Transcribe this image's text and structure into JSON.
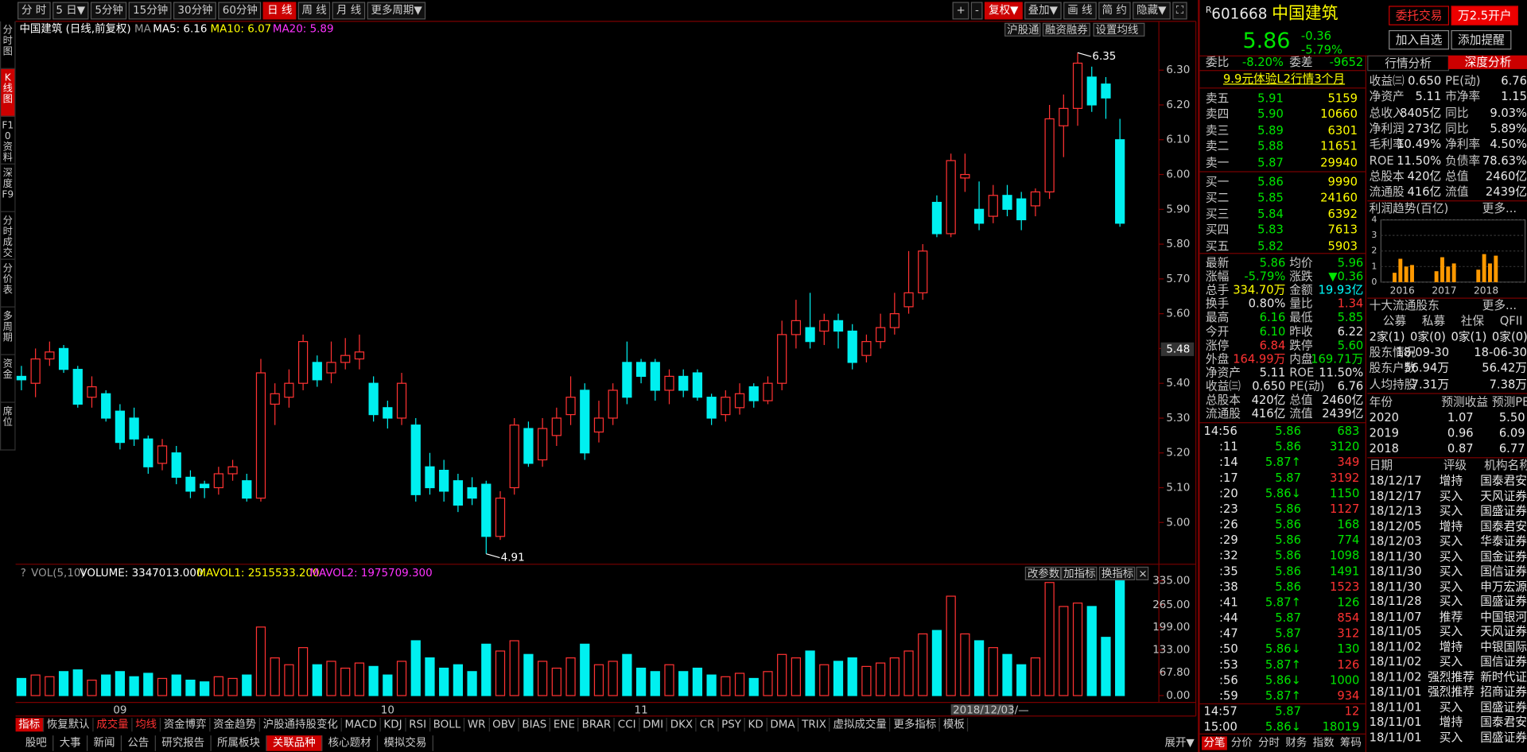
{
  "toolbar": {
    "periods": [
      "分 时",
      "5 日▼",
      "5分钟",
      "15分钟",
      "30分钟",
      "60分钟",
      "日 线",
      "周 线",
      "月 线",
      "更多周期▼"
    ],
    "active_period": 6,
    "tools": [
      "+",
      "-",
      "复权▼",
      "叠加▼",
      "画 线",
      "简 约",
      "隐藏▼",
      "⛶"
    ],
    "active_tool": 2
  },
  "side_tabs": {
    "items": [
      "分时图",
      "K线图",
      "F10资料",
      "深度F9",
      "分时成交",
      "分价表",
      "多周期",
      "资金",
      "席位"
    ],
    "active": 1
  },
  "kline": {
    "title": "中国建筑 (日线,前复权)",
    "ma": "MA",
    "ma5": "MA5: 6.16",
    "ma10": "MA10: 6.07",
    "ma20": "MA20: 5.89",
    "buttons": [
      "沪股通",
      "融资融券",
      "设置均线"
    ],
    "ylim": [
      4.88,
      6.44
    ],
    "yticks": [
      {
        "value": 5.0,
        "label": "5.00"
      },
      {
        "value": 5.1,
        "label": "5.10"
      },
      {
        "value": 5.2,
        "label": "5.20"
      },
      {
        "value": 5.3,
        "label": "5.30"
      },
      {
        "value": 5.4,
        "label": "5.40"
      },
      {
        "value": 5.5,
        "label": "5.50"
      },
      {
        "value": 5.6,
        "label": "5.60"
      },
      {
        "value": 5.7,
        "label": "5.70"
      },
      {
        "value": 5.8,
        "label": "5.80"
      },
      {
        "value": 5.9,
        "label": "5.90"
      },
      {
        "value": 6.0,
        "label": "6.00"
      },
      {
        "value": 6.1,
        "label": "6.10"
      },
      {
        "value": 6.2,
        "label": "6.20"
      },
      {
        "value": 6.3,
        "label": "6.30"
      }
    ],
    "cursor_price": "5.48",
    "high": 6.35,
    "low": 4.91,
    "up_color": "#ff3232",
    "down_color": "#00f0f0",
    "dates": [
      null,
      null,
      null,
      null,
      null,
      null,
      null,
      "09",
      null,
      null,
      null,
      null,
      null,
      null,
      null,
      null,
      null,
      null,
      null,
      null,
      null,
      null,
      null,
      null,
      null,
      null,
      "10",
      null,
      null,
      null,
      null,
      null,
      null,
      null,
      null,
      null,
      null,
      null,
      null,
      null,
      null,
      null,
      null,
      null,
      "11",
      null,
      null,
      null,
      null,
      null,
      null,
      null,
      null,
      null,
      null,
      null,
      null,
      null,
      null,
      null,
      null,
      null,
      null,
      null,
      null,
      null,
      "2018/12/03/—",
      null,
      null,
      null,
      null,
      null,
      null,
      null,
      null,
      null,
      null,
      null,
      null
    ],
    "candles": [
      [
        5.42,
        5.45,
        5.38,
        5.41
      ],
      [
        5.4,
        5.5,
        5.36,
        5.47
      ],
      [
        5.47,
        5.52,
        5.45,
        5.49
      ],
      [
        5.5,
        5.51,
        5.43,
        5.44
      ],
      [
        5.44,
        5.45,
        5.33,
        5.34
      ],
      [
        5.36,
        5.42,
        5.33,
        5.39
      ],
      [
        5.37,
        5.38,
        5.29,
        5.3
      ],
      [
        5.32,
        5.34,
        5.21,
        5.23
      ],
      [
        5.3,
        5.33,
        5.22,
        5.24
      ],
      [
        5.24,
        5.25,
        5.14,
        5.16
      ],
      [
        5.17,
        5.24,
        5.15,
        5.22
      ],
      [
        5.2,
        5.22,
        5.11,
        5.13
      ],
      [
        5.13,
        5.15,
        5.07,
        5.09
      ],
      [
        5.11,
        5.12,
        5.07,
        5.1
      ],
      [
        5.1,
        5.16,
        5.08,
        5.14
      ],
      [
        5.14,
        5.18,
        5.12,
        5.16
      ],
      [
        5.12,
        5.14,
        5.06,
        5.07
      ],
      [
        5.07,
        5.47,
        5.06,
        5.43
      ],
      [
        5.34,
        5.4,
        5.28,
        5.37
      ],
      [
        5.36,
        5.44,
        5.33,
        5.4
      ],
      [
        5.4,
        5.54,
        5.38,
        5.52
      ],
      [
        5.46,
        5.48,
        5.39,
        5.41
      ],
      [
        5.43,
        5.52,
        5.4,
        5.46
      ],
      [
        5.46,
        5.53,
        5.44,
        5.48
      ],
      [
        5.47,
        5.54,
        5.44,
        5.49
      ],
      [
        5.4,
        5.42,
        5.29,
        5.31
      ],
      [
        5.33,
        5.35,
        5.27,
        5.3
      ],
      [
        5.3,
        5.43,
        5.28,
        5.4
      ],
      [
        5.28,
        5.3,
        5.06,
        5.08
      ],
      [
        5.16,
        5.2,
        5.08,
        5.1
      ],
      [
        5.15,
        5.18,
        5.06,
        5.09
      ],
      [
        5.12,
        5.14,
        5.03,
        5.05
      ],
      [
        5.1,
        5.13,
        5.05,
        5.07
      ],
      [
        5.11,
        5.12,
        4.91,
        4.96
      ],
      [
        4.96,
        5.09,
        4.95,
        5.07
      ],
      [
        5.1,
        5.3,
        5.08,
        5.28
      ],
      [
        5.27,
        5.29,
        5.16,
        5.17
      ],
      [
        5.18,
        5.3,
        5.16,
        5.27
      ],
      [
        5.25,
        5.33,
        5.22,
        5.3
      ],
      [
        5.31,
        5.42,
        5.28,
        5.36
      ],
      [
        5.38,
        5.4,
        5.18,
        5.2
      ],
      [
        5.26,
        5.35,
        5.23,
        5.3
      ],
      [
        5.3,
        5.4,
        5.28,
        5.38
      ],
      [
        5.46,
        5.52,
        5.34,
        5.36
      ],
      [
        5.46,
        5.47,
        5.4,
        5.42
      ],
      [
        5.46,
        5.47,
        5.35,
        5.38
      ],
      [
        5.38,
        5.44,
        5.34,
        5.42
      ],
      [
        5.42,
        5.44,
        5.36,
        5.38
      ],
      [
        5.43,
        5.44,
        5.35,
        5.36
      ],
      [
        5.36,
        5.37,
        5.28,
        5.3
      ],
      [
        5.31,
        5.38,
        5.29,
        5.36
      ],
      [
        5.33,
        5.4,
        5.31,
        5.37
      ],
      [
        5.39,
        5.4,
        5.33,
        5.35
      ],
      [
        5.35,
        5.42,
        5.34,
        5.4
      ],
      [
        5.4,
        5.58,
        5.38,
        5.54
      ],
      [
        5.54,
        5.64,
        5.5,
        5.58
      ],
      [
        5.56,
        5.66,
        5.5,
        5.52
      ],
      [
        5.55,
        5.6,
        5.51,
        5.58
      ],
      [
        5.58,
        5.6,
        5.5,
        5.55
      ],
      [
        5.55,
        5.57,
        5.44,
        5.46
      ],
      [
        5.48,
        5.54,
        5.46,
        5.52
      ],
      [
        5.52,
        5.6,
        5.5,
        5.56
      ],
      [
        5.56,
        5.66,
        5.54,
        5.6
      ],
      [
        5.62,
        5.78,
        5.6,
        5.66
      ],
      [
        5.66,
        5.8,
        5.64,
        5.78
      ],
      [
        5.92,
        5.94,
        5.82,
        5.83
      ],
      [
        5.83,
        6.06,
        5.82,
        6.04
      ],
      [
        5.99,
        6.06,
        5.95,
        6.0
      ],
      [
        5.9,
        5.98,
        5.84,
        5.86
      ],
      [
        5.88,
        5.97,
        5.86,
        5.94
      ],
      [
        5.94,
        5.97,
        5.88,
        5.9
      ],
      [
        5.93,
        5.95,
        5.84,
        5.87
      ],
      [
        5.91,
        5.96,
        5.88,
        5.95
      ],
      [
        5.95,
        6.2,
        5.93,
        6.16
      ],
      [
        6.14,
        6.23,
        6.05,
        6.19
      ],
      [
        6.19,
        6.35,
        6.14,
        6.32
      ],
      [
        6.28,
        6.31,
        6.18,
        6.2
      ],
      [
        6.26,
        6.28,
        6.16,
        6.22
      ],
      [
        6.1,
        6.16,
        5.85,
        5.86
      ]
    ]
  },
  "volume": {
    "help": "?",
    "header": "VOL(5,10)",
    "volume": "VOLUME: 3347013.000",
    "mavol1": "MAVOL1: 2515533.200",
    "mavol2": "MAVOL2: 1975709.300",
    "buttons": [
      "改参数",
      "加指标",
      "换指标",
      "×"
    ],
    "ylim": [
      0,
      335
    ],
    "yticks": [
      {
        "value": 0,
        "label": "0.00"
      },
      {
        "value": 67.8,
        "label": "67.80"
      },
      {
        "value": 133,
        "label": "133.00"
      },
      {
        "value": 199,
        "label": "199.00"
      },
      {
        "value": 265,
        "label": "265.00"
      },
      {
        "value": 335,
        "label": "335.00"
      }
    ],
    "values": [
      50,
      60,
      55,
      70,
      75,
      45,
      60,
      70,
      55,
      65,
      50,
      60,
      45,
      40,
      55,
      50,
      60,
      200,
      110,
      90,
      140,
      90,
      100,
      80,
      95,
      85,
      60,
      100,
      160,
      110,
      80,
      90,
      70,
      150,
      130,
      160,
      120,
      100,
      80,
      110,
      150,
      90,
      100,
      120,
      80,
      70,
      90,
      70,
      80,
      60,
      55,
      65,
      50,
      70,
      120,
      110,
      130,
      90,
      100,
      110,
      85,
      95,
      110,
      130,
      180,
      190,
      290,
      180,
      160,
      140,
      120,
      90,
      110,
      330,
      260,
      270,
      260,
      170,
      334.7
    ]
  },
  "indicator_tabs": {
    "items": [
      "指标",
      "恢复默认",
      "成交量",
      "均线",
      "资金博弈",
      "资金趋势",
      "沪股通持股变化",
      "MACD",
      "KDJ",
      "RSI",
      "BOLL",
      "WR",
      "OBV",
      "BIAS",
      "ENE",
      "BRAR",
      "CCI",
      "DMI",
      "DKX",
      "CR",
      "PSY",
      "KD",
      "DMA",
      "TRIX",
      "虚拟成交量",
      "更多指标",
      "模板"
    ],
    "active": 0,
    "highlight": [
      2,
      3
    ]
  },
  "bottom_tabs": {
    "items": [
      "股吧",
      "大事",
      "新闻",
      "公告",
      "研究报告",
      "所属板块",
      "关联品种",
      "核心题材",
      "模拟交易"
    ],
    "active": 6,
    "expand": "展开▼"
  },
  "quote": {
    "flag": "R",
    "code": "601668",
    "name": "中国建筑",
    "price": "5.86",
    "change": "-0.36",
    "pct": "-5.79%",
    "buttons": [
      "委托交易",
      "万2.5开户",
      "加入自选",
      "添加提醒"
    ],
    "wei_bi_label": "委比",
    "wei_bi": "-8.20%",
    "wei_cha_label": "委差",
    "wei_cha": "-9652",
    "promo": "9.9元体验L2行情3个月",
    "sell": [
      [
        "卖五",
        "5.91",
        "5159"
      ],
      [
        "卖四",
        "5.90",
        "10660"
      ],
      [
        "卖三",
        "5.89",
        "6301"
      ],
      [
        "卖二",
        "5.88",
        "11651"
      ],
      [
        "卖一",
        "5.87",
        "29940"
      ]
    ],
    "buy": [
      [
        "买一",
        "5.86",
        "9990"
      ],
      [
        "买二",
        "5.85",
        "24160"
      ],
      [
        "买三",
        "5.84",
        "6392"
      ],
      [
        "买四",
        "5.83",
        "7613"
      ],
      [
        "买五",
        "5.82",
        "5903"
      ]
    ],
    "stats": [
      [
        "最新",
        "5.86",
        "均价",
        "5.96"
      ],
      [
        "涨幅",
        "-5.79%",
        "涨跌",
        "▼0.36"
      ],
      [
        "总手",
        "334.70万",
        "金额",
        "19.93亿"
      ],
      [
        "换手",
        "0.80%",
        "量比",
        "1.34"
      ],
      [
        "最高",
        "6.16",
        "最低",
        "5.85"
      ],
      [
        "今开",
        "6.10",
        "昨收",
        "6.22"
      ],
      [
        "涨停",
        "6.84",
        "跌停",
        "5.60"
      ],
      [
        "外盘",
        "164.99万",
        "内盘",
        "169.71万"
      ],
      [
        "净资产",
        "5.11",
        "ROE",
        "11.50%"
      ],
      [
        "收益㈢",
        "0.650",
        "PE(动)",
        "6.76"
      ],
      [
        "总股本",
        "420亿",
        "总值",
        "2460亿"
      ],
      [
        "流通股",
        "416亿",
        "流值",
        "2439亿"
      ]
    ],
    "ticks": [
      {
        "time": "14:56",
        "price": "5.86",
        "volume": "683",
        "color": "#00e600"
      },
      {
        "time": ":11",
        "price": "5.86",
        "volume": "3120",
        "color": "#00e600"
      },
      {
        "time": ":14",
        "price": "5.87↑",
        "volume": "349",
        "color": "#ff3232"
      },
      {
        "time": ":17",
        "price": "5.87",
        "volume": "3192",
        "color": "#ff3232"
      },
      {
        "time": ":20",
        "price": "5.86↓",
        "volume": "1150",
        "color": "#00e600"
      },
      {
        "time": ":23",
        "price": "5.86",
        "volume": "1127",
        "color": "#ff3232"
      },
      {
        "time": ":26",
        "price": "5.86",
        "volume": "168",
        "color": "#00e600"
      },
      {
        "time": ":29",
        "price": "5.86",
        "volume": "774",
        "color": "#00e600"
      },
      {
        "time": ":32",
        "price": "5.86",
        "volume": "1098",
        "color": "#00e600"
      },
      {
        "time": ":35",
        "price": "5.86",
        "volume": "1491",
        "color": "#00e600"
      },
      {
        "time": ":38",
        "price": "5.86",
        "volume": "1523",
        "color": "#ff3232"
      },
      {
        "time": ":41",
        "price": "5.87↑",
        "volume": "126",
        "color": "#00e600"
      },
      {
        "time": ":44",
        "price": "5.87",
        "volume": "854",
        "color": "#ff3232"
      },
      {
        "time": ":47",
        "price": "5.87",
        "volume": "312",
        "color": "#ff3232"
      },
      {
        "time": ":50",
        "price": "5.86↓",
        "volume": "130",
        "color": "#00e600"
      },
      {
        "time": ":53",
        "price": "5.87↑",
        "volume": "126",
        "color": "#ff3232"
      },
      {
        "time": ":56",
        "price": "5.86↓",
        "volume": "1000",
        "color": "#00e600"
      },
      {
        "time": ":59",
        "price": "5.87↑",
        "volume": "934",
        "color": "#ff3232"
      },
      {
        "time": "14:57",
        "price": "5.87",
        "volume": "12",
        "color": "#ff3232"
      },
      {
        "time": "15:00",
        "price": "5.86↓",
        "volume": "18019",
        "color": "#00e600"
      }
    ],
    "tabs": [
      "分笔",
      "分价",
      "分时",
      "财务",
      "指数",
      "筹码"
    ],
    "active_tab": 0
  },
  "analysis": {
    "tabs": [
      "行情分析",
      "深度分析"
    ],
    "active_tab": 1,
    "fundamentals": [
      [
        "收益㈢",
        "0.650",
        "PE(动)",
        "6.76"
      ],
      [
        "净资产",
        "5.11",
        "市净率",
        "1.15"
      ],
      [
        "总收入",
        "8405亿",
        "同比",
        "9.03%"
      ],
      [
        "净利润",
        "273亿",
        "同比",
        "5.89%"
      ],
      [
        "毛利率",
        "10.49%",
        "净利率",
        "4.50%"
      ],
      [
        "ROE",
        "11.50%",
        "负债率",
        "78.63%"
      ],
      [
        "总股本",
        "420亿",
        "总值",
        "2460亿"
      ],
      [
        "流通股",
        "416亿",
        "流值",
        "2439亿"
      ]
    ],
    "profit": {
      "title": "利润趋势(百亿)",
      "more": "更多...",
      "ylim": [
        0,
        4
      ],
      "yticks": [
        0,
        1,
        2,
        3,
        4
      ],
      "years": [
        "2016",
        "2017",
        "2018"
      ],
      "values": [
        [
          0.6,
          1.5,
          1.0,
          1.1
        ],
        [
          0.7,
          1.6,
          1.0,
          1.2
        ],
        [
          0.8,
          1.8,
          1.2,
          1.7
        ]
      ],
      "color": "#ff9900"
    },
    "holders": {
      "title": "十大流通股东",
      "more": "更多...",
      "header": [
        "公募",
        "私募",
        "社保",
        "QFII"
      ],
      "row": [
        "2家(1)",
        "0家(0)",
        "0家(1)",
        "0家(0)"
      ],
      "rows": [
        [
          "股东情况",
          "18-09-30",
          "18-06-30"
        ],
        [
          "股东户数",
          "56.94万",
          "56.42万"
        ],
        [
          "人均持股",
          "7.31万",
          "7.38万"
        ]
      ]
    },
    "forecast": {
      "header": [
        "年份",
        "预测收益",
        "预测PE"
      ],
      "rows": [
        [
          "2020",
          "1.07",
          "5.50"
        ],
        [
          "2019",
          "0.96",
          "6.09"
        ],
        [
          "2018",
          "0.87",
          "6.77"
        ]
      ]
    },
    "ratings": {
      "header": [
        "日期",
        "评级",
        "机构名称"
      ],
      "rows": [
        [
          "18/12/17",
          "增持",
          "国泰君安"
        ],
        [
          "18/12/17",
          "买入",
          "天风证券"
        ],
        [
          "18/12/13",
          "买入",
          "国盛证券"
        ],
        [
          "18/12/05",
          "增持",
          "国泰君安"
        ],
        [
          "18/12/03",
          "买入",
          "华泰证券"
        ],
        [
          "18/11/30",
          "买入",
          "国金证券"
        ],
        [
          "18/11/30",
          "买入",
          "国信证券"
        ],
        [
          "18/11/30",
          "买入",
          "申万宏源"
        ],
        [
          "18/11/28",
          "买入",
          "国盛证券"
        ],
        [
          "18/11/07",
          "推荐",
          "中国银河"
        ],
        [
          "18/11/05",
          "买入",
          "天风证券"
        ],
        [
          "18/11/02",
          "增持",
          "中银国际"
        ],
        [
          "18/11/02",
          "买入",
          "国信证券"
        ],
        [
          "18/11/02",
          "强烈推荐",
          "新时代证"
        ],
        [
          "18/11/01",
          "强烈推荐",
          "招商证券"
        ],
        [
          "18/11/01",
          "买入",
          "国盛证券"
        ],
        [
          "18/11/01",
          "增持",
          "国泰君安"
        ],
        [
          "18/11/01",
          "买入",
          "国盛证券"
        ]
      ]
    }
  }
}
